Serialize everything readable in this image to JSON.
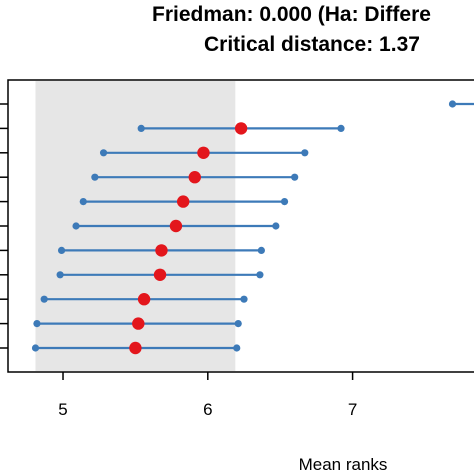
{
  "chart_data": {
    "type": "scatter",
    "title_lines": [
      "Friedman: 0.000 (Ha: Differe",
      "Critical distance: 1.37"
    ],
    "xlabel": "Mean ranks",
    "ylabel": "",
    "xlim": [
      4.62,
      7.88
    ],
    "x_ticks": [
      5,
      6,
      7
    ],
    "x_tick_labels": [
      "5",
      "6",
      "7"
    ],
    "critical_band": {
      "x_start": 4.81,
      "x_end": 6.19,
      "color": "#e6e6e6"
    },
    "colors": {
      "interval": "#3d7ab8",
      "mean_marker": "#e3161c",
      "band": "#e6e6e6"
    },
    "series": [
      {
        "low": 7.69,
        "high": 7.95,
        "mean": null
      },
      {
        "low": 5.54,
        "high": 6.92,
        "mean": 6.23
      },
      {
        "low": 5.28,
        "high": 6.67,
        "mean": 5.97
      },
      {
        "low": 5.22,
        "high": 6.6,
        "mean": 5.91
      },
      {
        "low": 5.14,
        "high": 6.53,
        "mean": 5.83
      },
      {
        "low": 5.09,
        "high": 6.47,
        "mean": 5.78
      },
      {
        "low": 4.99,
        "high": 6.37,
        "mean": 5.68
      },
      {
        "low": 4.98,
        "high": 6.36,
        "mean": 5.67
      },
      {
        "low": 4.87,
        "high": 6.25,
        "mean": 5.56
      },
      {
        "low": 4.82,
        "high": 6.21,
        "mean": 5.52
      },
      {
        "low": 4.81,
        "high": 6.2,
        "mean": 5.5
      }
    ]
  }
}
